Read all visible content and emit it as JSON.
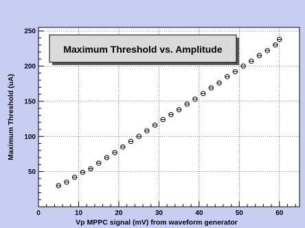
{
  "chart_data": {
    "type": "scatter",
    "title": "Maximum Threshold vs. Amplitude",
    "xlabel": "Vp MPPC signal (mV) from waveform generator",
    "ylabel": "Maximum Threshold (uA)",
    "xlim": [
      0,
      65
    ],
    "ylim": [
      0,
      255
    ],
    "x_ticks": [
      0,
      10,
      20,
      30,
      40,
      50,
      60
    ],
    "y_ticks": [
      50,
      100,
      150,
      200,
      250
    ],
    "grid": true,
    "series": [
      {
        "x": [
          5,
          7,
          9,
          11,
          13,
          15,
          17,
          19,
          21,
          23,
          25,
          27,
          29,
          31,
          33,
          35,
          37,
          39,
          41,
          43,
          45,
          47,
          49,
          51,
          53,
          55,
          57,
          59,
          60
        ],
        "y": [
          30,
          35,
          42,
          49,
          54,
          62,
          70,
          77,
          85,
          93,
          100,
          108,
          116,
          124,
          131,
          138,
          146,
          153,
          161,
          169,
          176,
          185,
          192,
          200,
          207,
          215,
          222,
          230,
          238
        ]
      }
    ]
  },
  "colors": {
    "background": "#c8cdf2",
    "plot_area": "#ffffff",
    "title_box": "#dadada",
    "marker": "#000000"
  }
}
